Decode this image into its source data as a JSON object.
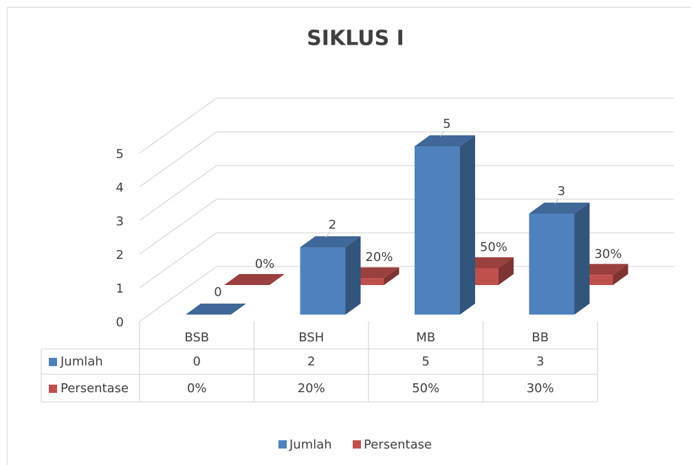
{
  "chart_data": {
    "type": "bar3d",
    "title": "SIKLUS I",
    "categories": [
      "BSB",
      "BSH",
      "MB",
      "BB"
    ],
    "series": [
      {
        "name": "Jumlah",
        "color": "#4f81bd",
        "values": [
          0,
          2,
          5,
          3
        ]
      },
      {
        "name": "Persentase",
        "color": "#c0504d",
        "values": [
          0,
          0.2,
          0.5,
          0.3
        ],
        "value_labels": [
          "0%",
          "20%",
          "50%",
          "30%"
        ]
      }
    ],
    "ylim": [
      0,
      5
    ],
    "yticks": [
      0,
      1,
      2,
      3,
      4,
      5
    ],
    "grid": true,
    "legend": "bottom",
    "data_table": true
  }
}
